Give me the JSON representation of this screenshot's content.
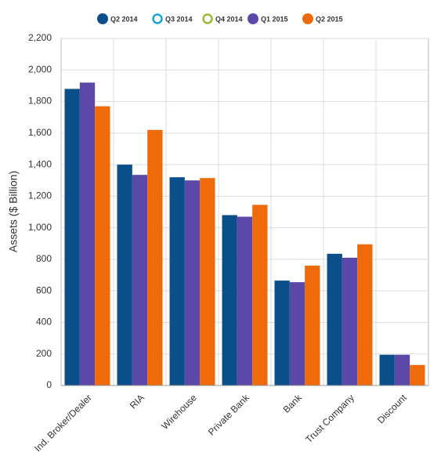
{
  "chart_data": {
    "type": "bar",
    "y_label": "Assets ($ Billion)",
    "categories": [
      "Ind. Broker/Dealer",
      "RIA",
      "Wirehouse",
      "Private Bank",
      "Bank",
      "Trust Company",
      "Discount"
    ],
    "series": [
      {
        "name": "Q2 2014",
        "color": "#0b4f8a",
        "values": [
          1880,
          1400,
          1320,
          1080,
          665,
          835,
          195
        ]
      },
      {
        "name": "Q3 2014",
        "color": "#1ba3d6",
        "values": [
          null,
          null,
          null,
          null,
          null,
          null,
          null
        ]
      },
      {
        "name": "Q4 2014",
        "color": "#98b83a",
        "values": [
          null,
          null,
          null,
          null,
          null,
          null,
          null
        ]
      },
      {
        "name": "Q1 2015",
        "color": "#5c48a8",
        "values": [
          1920,
          1335,
          1300,
          1070,
          655,
          810,
          195
        ]
      },
      {
        "name": "Q2 2015",
        "color": "#ee6a0a",
        "values": [
          1770,
          1620,
          1315,
          1145,
          760,
          895,
          130
        ]
      }
    ],
    "ylim": [
      0,
      2200
    ],
    "yticks": [
      0,
      200,
      400,
      600,
      800,
      {
        "value": 1000,
        "label": "1,000"
      },
      {
        "value": 1200,
        "label": "1,200"
      },
      {
        "value": 1400,
        "label": "1,400"
      },
      {
        "value": 1600,
        "label": "1,600"
      },
      {
        "value": 1800,
        "label": "1,800"
      },
      {
        "value": 2000,
        "label": "2,000"
      },
      {
        "value": 2200,
        "label": "2,200"
      }
    ],
    "grid": true
  }
}
